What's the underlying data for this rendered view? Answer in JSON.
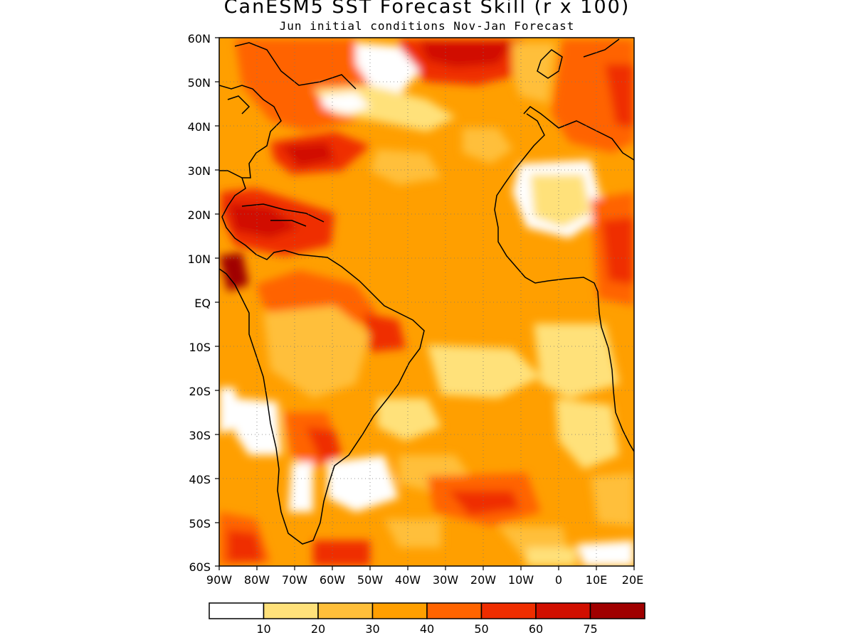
{
  "header": {
    "title": "CanESM5 SST Forecast Skill (r x 100)",
    "subtitle": "Jun initial conditions  Nov-Jan Forecast"
  },
  "map": {
    "region": "Atlantic Ocean",
    "lon_range": [
      -90,
      20
    ],
    "lat_range": [
      -60,
      60
    ],
    "grid": "dotted",
    "lat_labels": [
      "60N",
      "50N",
      "40N",
      "30N",
      "20N",
      "10N",
      "EQ",
      "10S",
      "20S",
      "30S",
      "40S",
      "50S",
      "60S"
    ],
    "lon_labels": [
      "90W",
      "80W",
      "70W",
      "60W",
      "50W",
      "40W",
      "30W",
      "20W",
      "10W",
      "0",
      "10E",
      "20E"
    ]
  },
  "colorbar": {
    "colors": [
      "#ffffff",
      "#ffe17a",
      "#ffbf3a",
      "#ff9f00",
      "#ff6400",
      "#ef2d00",
      "#d10f00",
      "#a00000"
    ],
    "labels": [
      "10",
      "20",
      "30",
      "40",
      "50",
      "60",
      "75"
    ]
  }
}
